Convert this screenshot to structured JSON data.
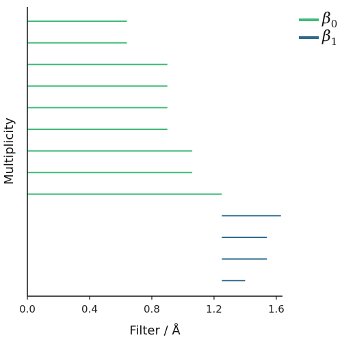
{
  "chart_data": {
    "type": "barcode",
    "xlabel": "Filter / Å",
    "ylabel": "Multiplicity",
    "xlim": [
      0.0,
      1.64
    ],
    "xticks": [
      0.0,
      0.4,
      0.8,
      1.2,
      1.6
    ],
    "xtick_labels": [
      "0.0",
      "0.4",
      "0.8",
      "1.2",
      "1.6"
    ],
    "legend_position": "top-right",
    "series": [
      {
        "name": "β0",
        "name_symbol": "β",
        "name_subscript": "0",
        "color": "#3dba78",
        "intervals": [
          [
            0.0,
            0.64
          ],
          [
            0.0,
            0.64
          ],
          [
            0.0,
            0.9
          ],
          [
            0.0,
            0.9
          ],
          [
            0.0,
            0.9
          ],
          [
            0.0,
            0.9
          ],
          [
            0.0,
            1.06
          ],
          [
            0.0,
            1.06
          ],
          [
            0.0,
            1.25
          ]
        ]
      },
      {
        "name": "β1",
        "name_symbol": "β",
        "name_subscript": "1",
        "color": "#2e6b8c",
        "intervals": [
          [
            1.25,
            1.63
          ],
          [
            1.25,
            1.54
          ],
          [
            1.25,
            1.54
          ],
          [
            1.25,
            1.4
          ]
        ]
      }
    ]
  }
}
